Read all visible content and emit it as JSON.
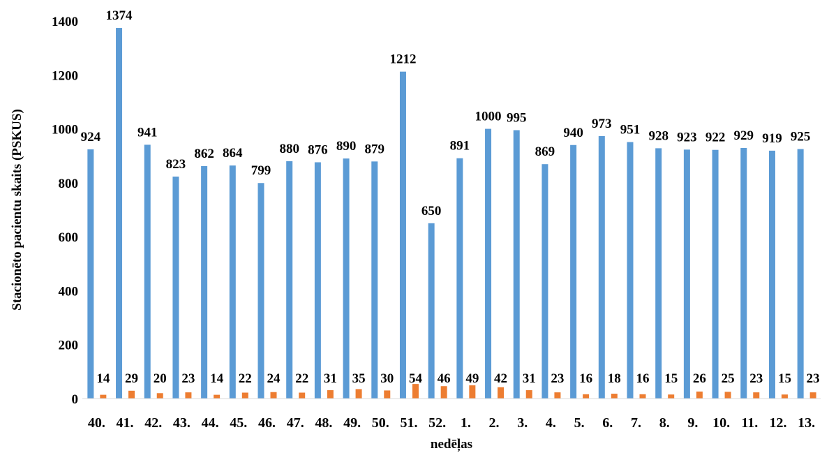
{
  "chart_data": {
    "type": "bar",
    "xlabel": "nedēļas",
    "ylabel": "Stacionēto pacientu skaits (PSKUS)",
    "ylim": [
      0,
      1400
    ],
    "yticks": [
      0,
      200,
      400,
      600,
      800,
      1000,
      1200,
      1400
    ],
    "grid": false,
    "legend": "none",
    "categories": [
      "40.",
      "41.",
      "42.",
      "43.",
      "44.",
      "45.",
      "46.",
      "47.",
      "48.",
      "49.",
      "50.",
      "51.",
      "52.",
      "1.",
      "2.",
      "3.",
      "4.",
      "5.",
      "6.",
      "7.",
      "8.",
      "9.",
      "10.",
      "11.",
      "12.",
      "13."
    ],
    "series": [
      {
        "color": "#5B9BD5",
        "values": [
          924,
          1374,
          941,
          823,
          862,
          864,
          799,
          880,
          876,
          890,
          879,
          1212,
          650,
          891,
          1000,
          995,
          869,
          940,
          973,
          951,
          928,
          923,
          922,
          929,
          919,
          925
        ]
      },
      {
        "color": "#ED7D31",
        "values": [
          14,
          29,
          20,
          23,
          14,
          22,
          24,
          22,
          31,
          35,
          30,
          54,
          46,
          49,
          42,
          31,
          23,
          16,
          18,
          16,
          15,
          26,
          25,
          23,
          15,
          23
        ]
      }
    ]
  }
}
